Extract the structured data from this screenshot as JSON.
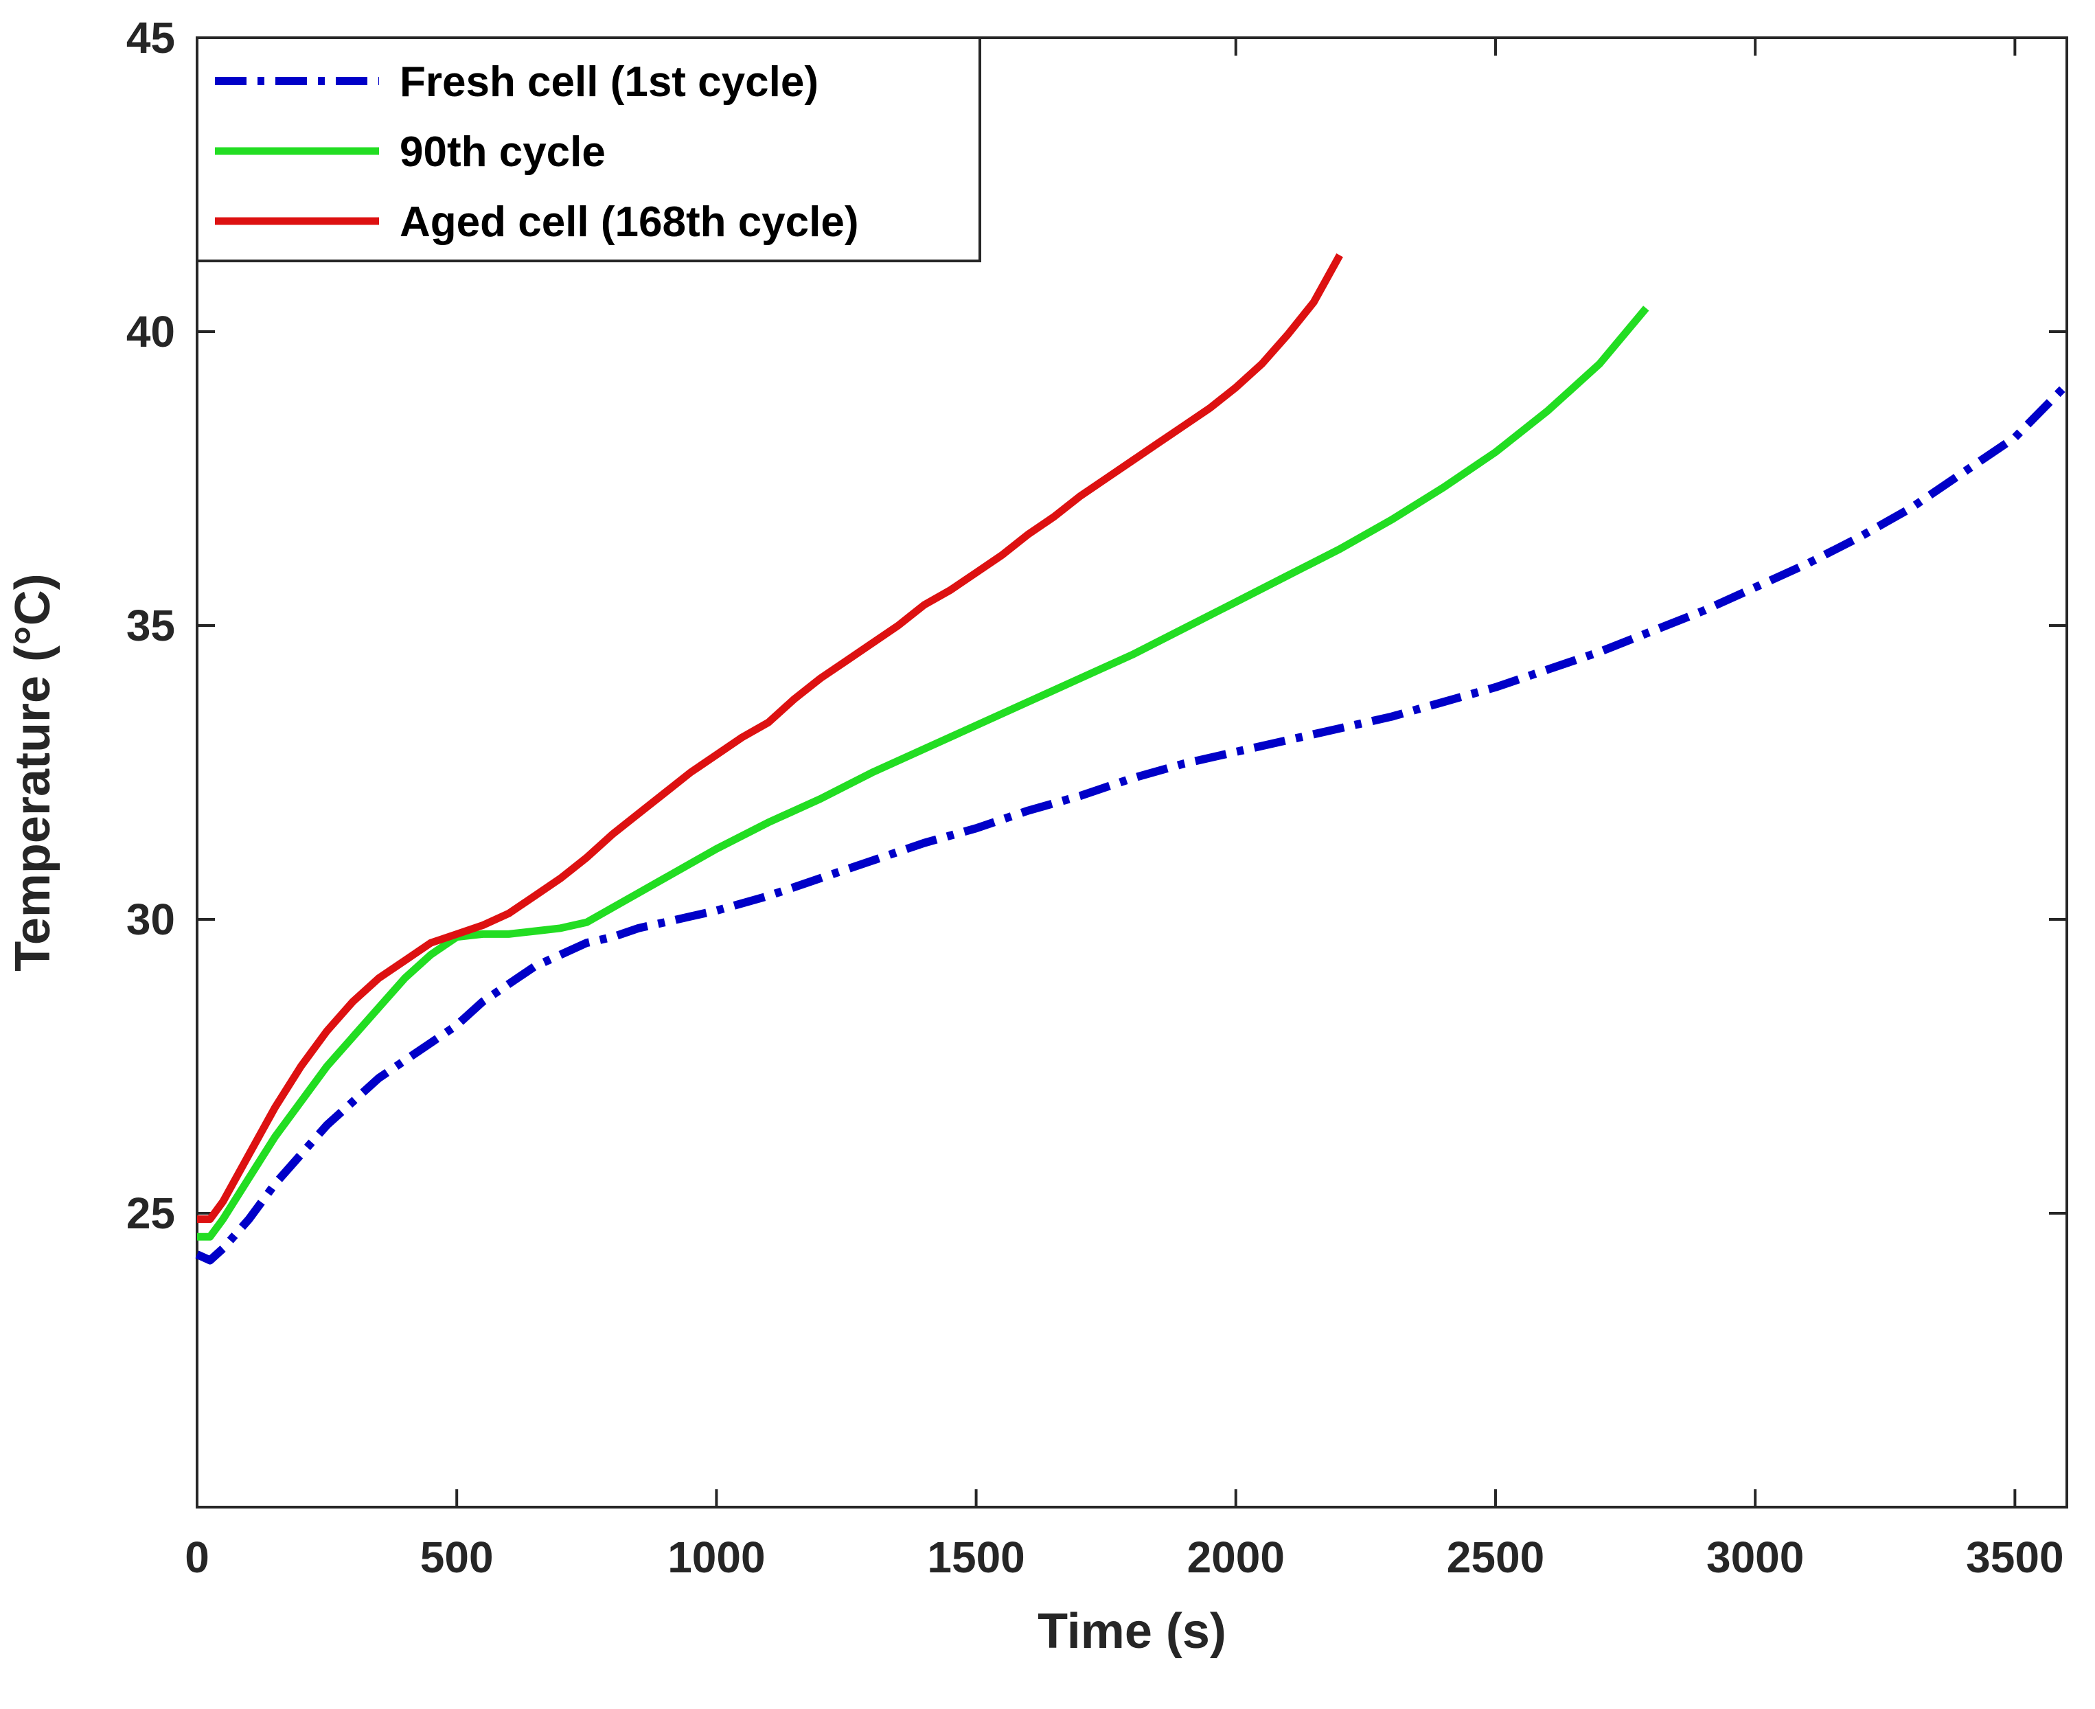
{
  "chart_data": {
    "type": "line",
    "title": "",
    "xlabel": "Time (s)",
    "ylabel": "Temperature (°C)",
    "xlim": [
      0,
      3600
    ],
    "ylim": [
      20,
      45
    ],
    "x_ticks": [
      0,
      500,
      1000,
      1500,
      2000,
      2500,
      3000,
      3500
    ],
    "y_ticks": [
      25,
      30,
      35,
      40,
      45
    ],
    "grid": false,
    "legend_position": "top-left",
    "series": [
      {
        "name": "Fresh cell (1st cycle)",
        "color": "#0000c8",
        "style": "dash-dot",
        "x": [
          0,
          25,
          50,
          100,
          150,
          200,
          250,
          300,
          350,
          400,
          450,
          500,
          550,
          600,
          650,
          700,
          750,
          800,
          850,
          900,
          950,
          1000,
          1100,
          1200,
          1300,
          1400,
          1500,
          1600,
          1700,
          1800,
          1900,
          2000,
          2100,
          2200,
          2300,
          2400,
          2500,
          2600,
          2700,
          2800,
          2900,
          3000,
          3100,
          3200,
          3300,
          3400,
          3500,
          3600
        ],
        "y": [
          24.3,
          24.2,
          24.4,
          24.9,
          25.5,
          26.0,
          26.5,
          26.9,
          27.3,
          27.6,
          27.9,
          28.2,
          28.6,
          28.9,
          29.2,
          29.4,
          29.6,
          29.7,
          29.85,
          29.95,
          30.05,
          30.15,
          30.4,
          30.7,
          31.0,
          31.3,
          31.55,
          31.85,
          32.1,
          32.4,
          32.65,
          32.85,
          33.05,
          33.25,
          33.45,
          33.7,
          33.95,
          34.25,
          34.55,
          34.9,
          35.25,
          35.65,
          36.05,
          36.5,
          37.0,
          37.6,
          38.2,
          39.1
        ]
      },
      {
        "name": "90th cycle",
        "color": "#22dd22",
        "style": "solid",
        "x": [
          0,
          25,
          50,
          100,
          150,
          200,
          250,
          300,
          350,
          400,
          450,
          500,
          550,
          600,
          650,
          700,
          750,
          800,
          850,
          900,
          950,
          1000,
          1100,
          1200,
          1300,
          1400,
          1500,
          1600,
          1700,
          1800,
          1900,
          2000,
          2100,
          2200,
          2300,
          2400,
          2500,
          2600,
          2700,
          2790
        ],
        "y": [
          24.6,
          24.6,
          24.9,
          25.6,
          26.3,
          26.9,
          27.5,
          28.0,
          28.5,
          29.0,
          29.4,
          29.7,
          29.75,
          29.75,
          29.8,
          29.85,
          29.95,
          30.2,
          30.45,
          30.7,
          30.95,
          31.2,
          31.65,
          32.05,
          32.5,
          32.9,
          33.3,
          33.7,
          34.1,
          34.5,
          34.95,
          35.4,
          35.85,
          36.3,
          36.8,
          37.35,
          37.95,
          38.65,
          39.45,
          40.4
        ]
      },
      {
        "name": "Aged cell (168th cycle)",
        "color": "#dd1111",
        "style": "solid",
        "x": [
          0,
          25,
          50,
          100,
          150,
          200,
          250,
          300,
          350,
          400,
          450,
          500,
          550,
          600,
          650,
          700,
          750,
          800,
          850,
          900,
          950,
          1000,
          1050,
          1100,
          1150,
          1200,
          1250,
          1300,
          1350,
          1400,
          1450,
          1500,
          1550,
          1600,
          1650,
          1700,
          1750,
          1800,
          1850,
          1900,
          1950,
          2000,
          2050,
          2100,
          2150,
          2200
        ],
        "y": [
          24.9,
          24.9,
          25.2,
          26.0,
          26.8,
          27.5,
          28.1,
          28.6,
          29.0,
          29.3,
          29.6,
          29.75,
          29.9,
          30.1,
          30.4,
          30.7,
          31.05,
          31.45,
          31.8,
          32.15,
          32.5,
          32.8,
          33.1,
          33.35,
          33.75,
          34.1,
          34.4,
          34.7,
          35.0,
          35.35,
          35.6,
          35.9,
          36.2,
          36.55,
          36.85,
          37.2,
          37.5,
          37.8,
          38.1,
          38.4,
          38.7,
          39.05,
          39.45,
          39.95,
          40.5,
          41.3
        ]
      }
    ]
  }
}
